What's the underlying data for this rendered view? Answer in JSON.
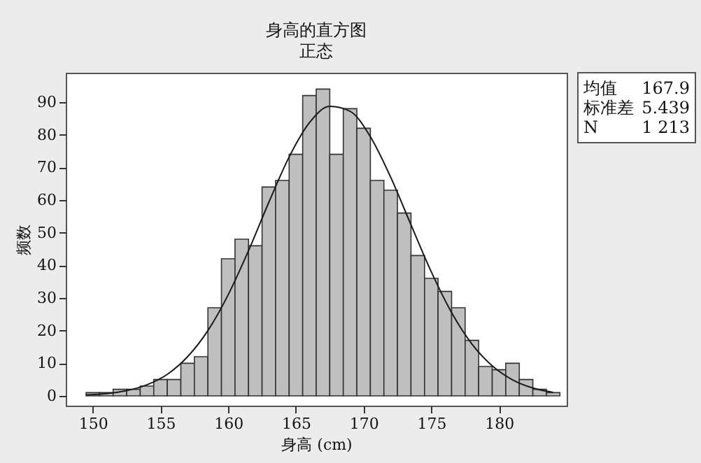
{
  "chart_data": {
    "type": "histogram",
    "title": "身高的直方图",
    "subtitle": "正态",
    "xlabel": "身高 (cm)",
    "ylabel": "频数",
    "bins": [
      149.5,
      150.5,
      151.5,
      152.5,
      153.5,
      154.5,
      155.5,
      156.5,
      157.5,
      158.5,
      159.5,
      160.5,
      161.5,
      162.5,
      163.5,
      164.5,
      165.5,
      166.5,
      167.5,
      168.5,
      169.5,
      170.5,
      171.5,
      172.5,
      173.5,
      174.5,
      175.5,
      176.5,
      177.5,
      178.5,
      179.5,
      180.5,
      181.5,
      182.5,
      183.5,
      184.5
    ],
    "values": [
      1,
      1,
      2,
      2,
      3,
      5,
      5,
      10,
      12,
      27,
      42,
      48,
      46,
      64,
      66,
      74,
      92,
      94,
      74,
      88,
      82,
      66,
      63,
      56,
      43,
      36,
      32,
      27,
      17,
      9,
      8,
      10,
      5,
      2,
      1
    ],
    "color": "#bfbfbf",
    "series": [
      {
        "type": "line",
        "color": "#1a1a1a",
        "x": [
          149.5,
          151,
          152.5,
          154,
          155.5,
          157,
          158.5,
          160,
          161.5,
          163,
          164.5,
          166,
          167.5,
          169,
          170.5,
          172,
          173.5,
          175,
          176.5,
          178,
          179.5,
          181,
          182.5,
          184
        ],
        "values": [
          0.3,
          0.7,
          1.6,
          3.4,
          6.6,
          12.0,
          20.0,
          31.0,
          44.5,
          59.3,
          73.2,
          83.7,
          88.7,
          87.2,
          79.4,
          67.0,
          52.4,
          38.0,
          25.5,
          15.9,
          9.2,
          4.9,
          2.4,
          1.1
        ]
      }
    ],
    "xlim": [
      148,
      185
    ],
    "ylim": [
      -3,
      99
    ],
    "xticks": [
      150,
      155,
      160,
      165,
      170,
      175,
      180
    ],
    "yticks": [
      0,
      10,
      20,
      30,
      40,
      50,
      60,
      70,
      80,
      90
    ],
    "grid": false,
    "annotations": [
      "均值",
      "167.9",
      "标准差",
      "5.439",
      "N",
      "1 213"
    ]
  }
}
